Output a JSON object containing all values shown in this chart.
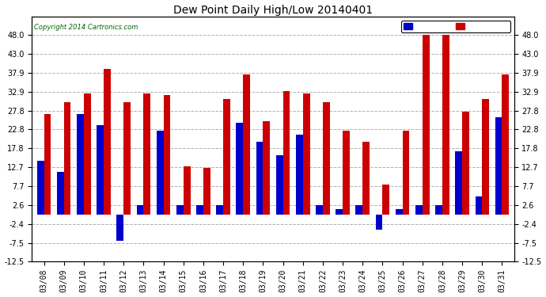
{
  "title": "Dew Point Daily High/Low 20140401",
  "copyright": "Copyright 2014 Cartronics.com",
  "dates": [
    "03/08",
    "03/09",
    "03/10",
    "03/11",
    "03/12",
    "03/13",
    "03/14",
    "03/15",
    "03/16",
    "03/17",
    "03/18",
    "03/19",
    "03/20",
    "03/21",
    "03/22",
    "03/23",
    "03/24",
    "03/25",
    "03/26",
    "03/27",
    "03/28",
    "03/29",
    "03/30",
    "03/31"
  ],
  "low": [
    14.5,
    11.5,
    27.0,
    24.0,
    -7.0,
    2.6,
    22.5,
    2.6,
    2.6,
    2.6,
    24.5,
    19.5,
    16.0,
    21.5,
    2.6,
    1.5,
    2.6,
    -4.0,
    1.5,
    2.6,
    2.6,
    17.0,
    5.0,
    26.0
  ],
  "high": [
    27.0,
    30.0,
    32.5,
    39.0,
    30.0,
    32.5,
    32.0,
    13.0,
    12.5,
    31.0,
    37.5,
    25.0,
    33.0,
    32.5,
    30.0,
    22.5,
    19.5,
    8.0,
    22.5,
    48.0,
    48.0,
    27.5,
    31.0,
    37.5
  ],
  "low_color": "#0000cc",
  "high_color": "#cc0000",
  "background_color": "#ffffff",
  "grid_color": "#b0b0b0",
  "ylim": [
    -12.5,
    53.0
  ],
  "yticks": [
    -12.5,
    -7.5,
    -2.4,
    2.6,
    7.7,
    12.7,
    17.8,
    22.8,
    27.8,
    32.9,
    37.9,
    43.0,
    48.0
  ],
  "ytick_labels": [
    "-12.5",
    "-7.5",
    "-2.4",
    "2.6",
    "7.7",
    "12.7",
    "17.8",
    "22.8",
    "27.8",
    "32.9",
    "37.9",
    "43.0",
    "48.0"
  ],
  "figsize": [
    6.9,
    3.75
  ],
  "dpi": 100
}
